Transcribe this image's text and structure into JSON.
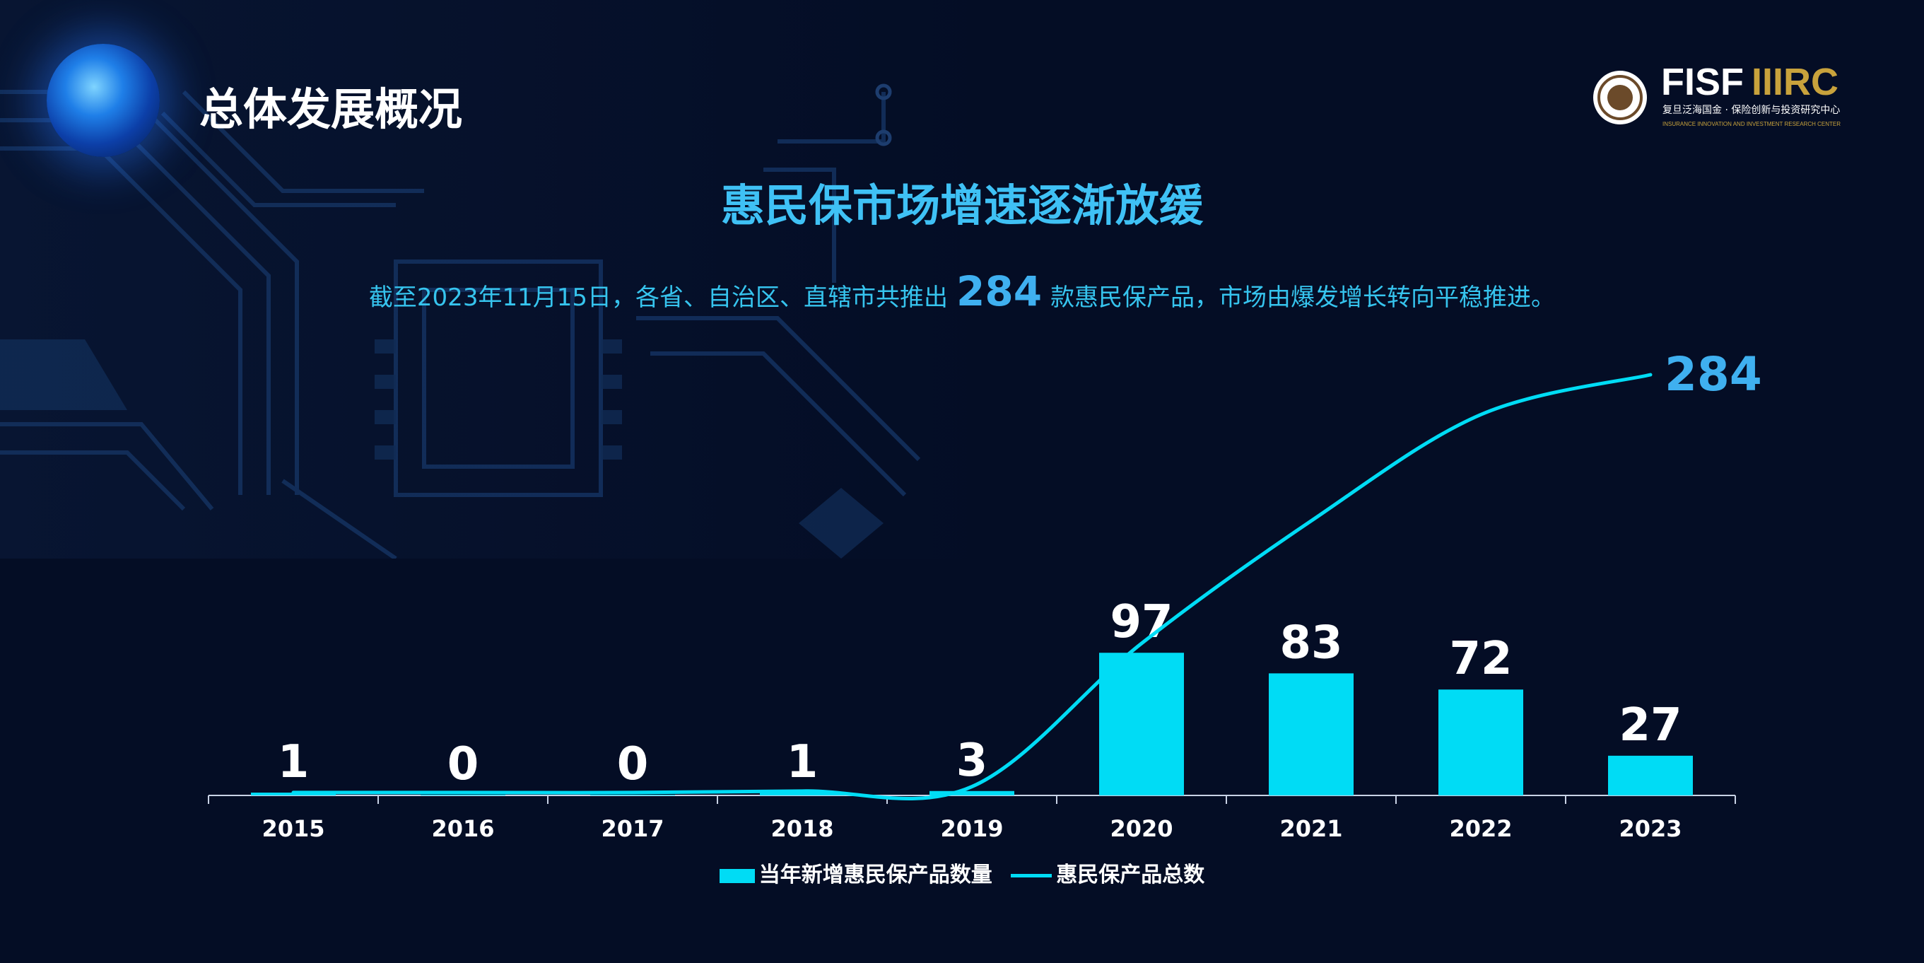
{
  "header": {
    "section_title": "总体发展概况"
  },
  "logo": {
    "brand_text": "FISF",
    "brand_text_2": "IIIRC",
    "chinese_name": "复旦泛海国金 · 保险创新与投资研究中心",
    "english_name": "INSURANCE INNOVATION AND INVESTMENT RESEARCH CENTER"
  },
  "headline": "惠民保市场增速逐渐放缓",
  "summary": {
    "prefix": "截至2023年11月15日，各省、自治区、直辖市共推出",
    "highlight": "284",
    "suffix": "款惠民保产品，市场由爆发增长转向平稳推进。"
  },
  "colors": {
    "background": "#040d25",
    "bar": "#00dcf5",
    "line": "#00dcf5",
    "headline": "#3fc1f5",
    "end_label": "#3fb0f0"
  },
  "chart_data": {
    "type": "bar",
    "categories": [
      "2015",
      "2016",
      "2017",
      "2018",
      "2019",
      "2020",
      "2021",
      "2022",
      "2023"
    ],
    "series": [
      {
        "name": "当年新增惠民保产品数量",
        "type": "bar",
        "values": [
          1,
          0,
          0,
          1,
          3,
          97,
          83,
          72,
          27
        ]
      },
      {
        "name": "惠民保产品总数",
        "type": "line",
        "values": [
          1,
          1,
          1,
          2,
          5,
          102,
          185,
          257,
          284
        ]
      }
    ],
    "data_labels": [
      "1",
      "0",
      "0",
      "1",
      "3",
      "97",
      "83",
      "72",
      "27"
    ],
    "line_end_label": "284",
    "legend_position": "bottom",
    "grid": false
  }
}
